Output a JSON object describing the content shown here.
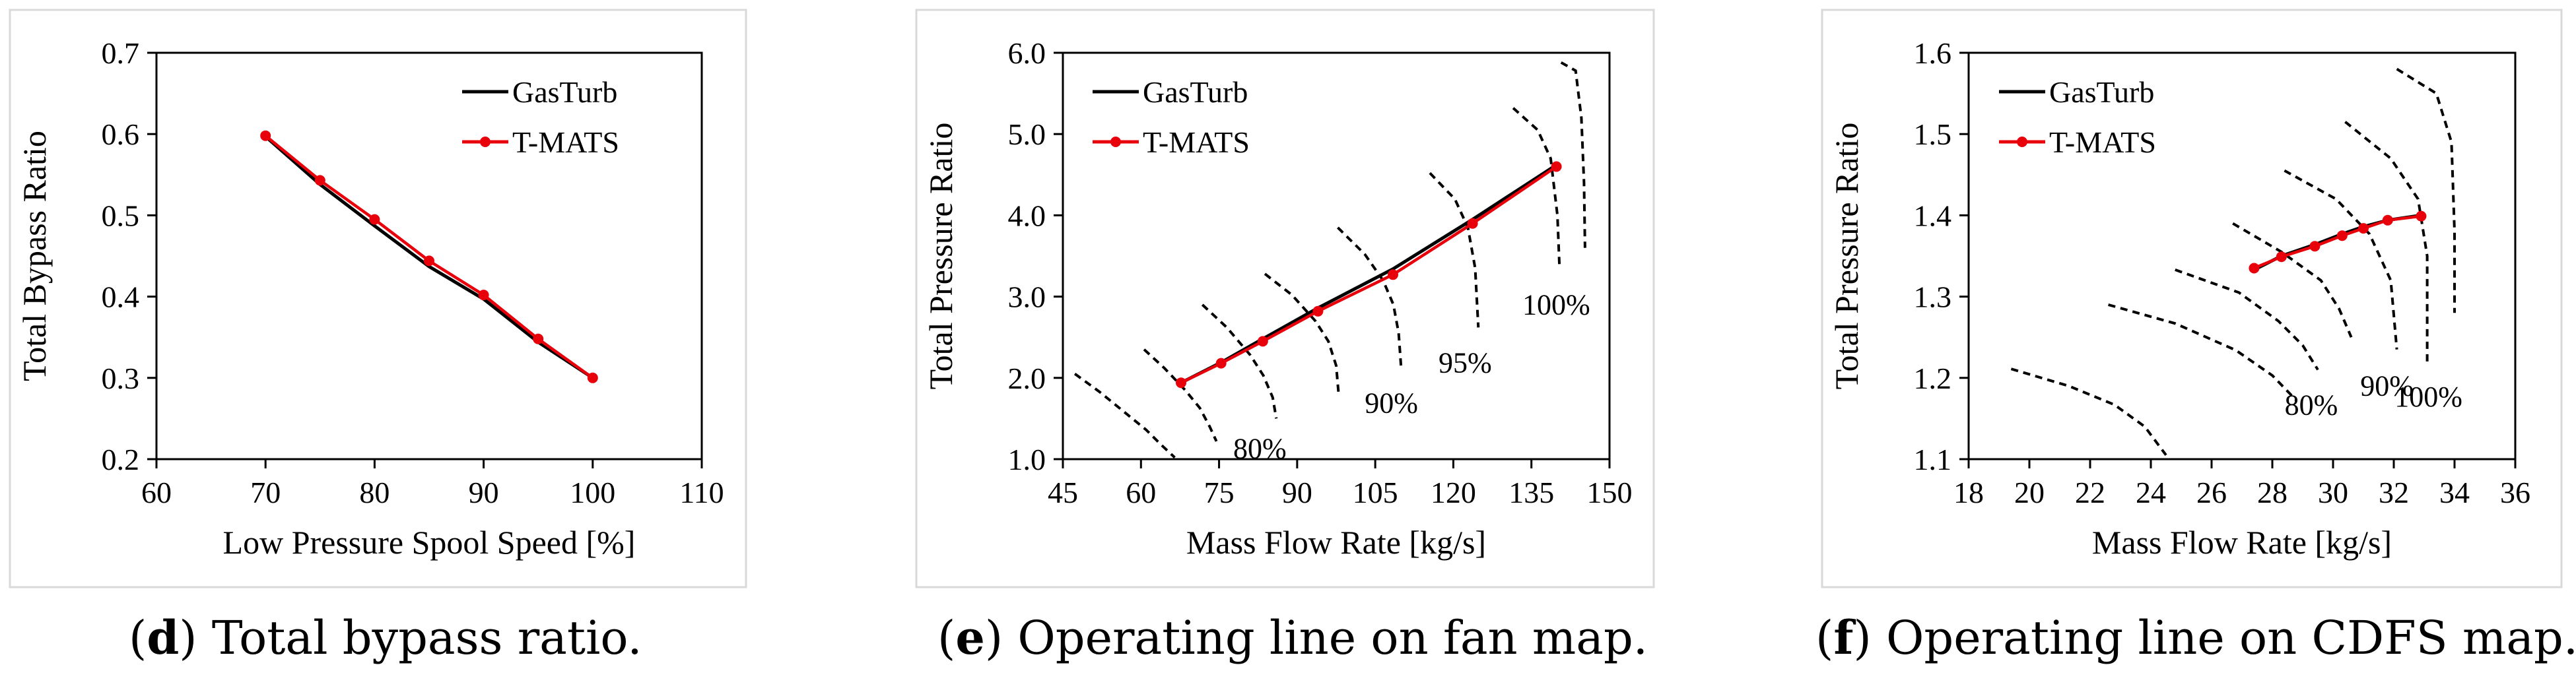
{
  "captions": [
    {
      "letter": "d",
      "text": "Total bypass ratio."
    },
    {
      "letter": "e",
      "text": "Operating line on fan map."
    },
    {
      "letter": "f",
      "text": "Operating line on CDFS map."
    }
  ],
  "colors": {
    "gasturb": "#000000",
    "tmats": "#e8000b",
    "speed_lines": "#000000",
    "frame": "#d9d9d9"
  },
  "chart_data": [
    {
      "type": "line",
      "xlabel": "Low Pressure Spool Speed [%]",
      "ylabel": "Total Bypass Ratio",
      "xlim": [
        60,
        110
      ],
      "ylim": [
        0.2,
        0.7
      ],
      "x_ticks": [
        "60",
        "70",
        "80",
        "90",
        "100",
        "110"
      ],
      "y_ticks": [
        "0.2",
        "0.3",
        "0.4",
        "0.5",
        "0.6",
        "0.7"
      ],
      "legend": "top-right",
      "grid": false,
      "series": [
        {
          "name": "GasTurb",
          "style": "line",
          "x": [
            70,
            75,
            80,
            85,
            90,
            95,
            100
          ],
          "y": [
            0.597,
            0.538,
            0.487,
            0.437,
            0.397,
            0.344,
            0.3
          ]
        },
        {
          "name": "T-MATS",
          "style": "line-markers",
          "x": [
            70,
            75,
            80,
            85,
            90,
            95,
            100
          ],
          "y": [
            0.598,
            0.543,
            0.495,
            0.444,
            0.402,
            0.348,
            0.3
          ]
        }
      ]
    },
    {
      "type": "line",
      "xlabel": "Mass Flow Rate [kg/s]",
      "ylabel": "Total Pressure Ratio",
      "xlim": [
        45,
        150
      ],
      "ylim": [
        1.0,
        6.0
      ],
      "x_ticks": [
        "45",
        "60",
        "75",
        "90",
        "105",
        "120",
        "135",
        "150"
      ],
      "y_ticks": [
        "1.0",
        "2.0",
        "3.0",
        "4.0",
        "5.0",
        "6.0"
      ],
      "legend": "top-left",
      "grid": false,
      "speed_lines": [
        {
          "label": "",
          "x": [
            47.3,
            52,
            57,
            61,
            64,
            66.5
          ],
          "y": [
            2.05,
            1.83,
            1.57,
            1.36,
            1.17,
            1.02
          ]
        },
        {
          "label": "",
          "x": [
            60.6,
            64.5,
            68.5,
            71.3,
            73.2,
            74.5
          ],
          "y": [
            2.35,
            2.12,
            1.85,
            1.63,
            1.4,
            1.22
          ]
        },
        {
          "label": "80%",
          "x": [
            71.8,
            76.5,
            81,
            83.5,
            85.3,
            86
          ],
          "y": [
            2.9,
            2.62,
            2.28,
            2.03,
            1.76,
            1.5
          ]
        },
        {
          "label": "",
          "x": [
            83.8,
            89,
            93.5,
            96,
            97.5,
            98
          ],
          "y": [
            3.28,
            3.02,
            2.7,
            2.45,
            2.15,
            1.78
          ]
        },
        {
          "label": "90%",
          "x": [
            97.8,
            103,
            106.5,
            108.5,
            109.5,
            110
          ],
          "y": [
            3.85,
            3.52,
            3.2,
            2.9,
            2.55,
            2.1
          ]
        },
        {
          "label": "95%",
          "x": [
            115.5,
            120.3,
            122.8,
            124.2,
            124.8
          ],
          "y": [
            4.52,
            4.2,
            3.85,
            3.35,
            2.62
          ]
        },
        {
          "label": "100%",
          "x": [
            131.5,
            136.2,
            138.7,
            140,
            140.4
          ],
          "y": [
            5.32,
            5.05,
            4.7,
            4.0,
            3.35
          ]
        },
        {
          "label": "",
          "x": [
            140.7,
            143.5,
            144.6,
            145.1,
            145.3
          ],
          "y": [
            5.88,
            5.78,
            5.2,
            4.4,
            3.6
          ]
        }
      ],
      "series": [
        {
          "name": "GasTurb",
          "style": "line",
          "x": [
            67.7,
            75.4,
            83.4,
            94.0,
            108.4,
            123.7,
            139.8
          ],
          "y": [
            1.94,
            2.19,
            2.48,
            2.86,
            3.34,
            3.95,
            4.62
          ]
        },
        {
          "name": "T-MATS",
          "style": "line-markers",
          "x": [
            67.7,
            75.4,
            83.4,
            94.0,
            108.4,
            123.7,
            139.8
          ],
          "y": [
            1.94,
            2.18,
            2.45,
            2.82,
            3.27,
            3.9,
            4.6
          ]
        }
      ]
    },
    {
      "type": "line",
      "xlabel": "Mass Flow Rate [kg/s]",
      "ylabel": "Total Pressure Ratio",
      "xlim": [
        18,
        36
      ],
      "ylim": [
        1.1,
        1.6
      ],
      "x_ticks": [
        "18",
        "20",
        "22",
        "24",
        "26",
        "28",
        "30",
        "32",
        "34",
        "36"
      ],
      "y_ticks": [
        "1.1",
        "1.2",
        "1.3",
        "1.4",
        "1.5",
        "1.6"
      ],
      "legend": "top-left",
      "grid": false,
      "speed_lines": [
        {
          "label": "",
          "x": [
            19.4,
            21.3,
            22.8,
            23.8,
            24.5
          ],
          "y": [
            1.211,
            1.19,
            1.167,
            1.14,
            1.105
          ]
        },
        {
          "label": "",
          "x": [
            22.6,
            24.8,
            26.8,
            28.0,
            28.8
          ],
          "y": [
            1.29,
            1.267,
            1.234,
            1.203,
            1.172
          ]
        },
        {
          "label": "80%",
          "x": [
            24.8,
            26.9,
            28.2,
            29.0,
            29.5
          ],
          "y": [
            1.333,
            1.305,
            1.27,
            1.24,
            1.21
          ]
        },
        {
          "label": "",
          "x": [
            26.7,
            28.3,
            29.6,
            30.2,
            30.6
          ],
          "y": [
            1.39,
            1.355,
            1.32,
            1.285,
            1.25
          ]
        },
        {
          "label": "90%",
          "x": [
            28.4,
            30.1,
            31.2,
            31.9,
            32.1
          ],
          "y": [
            1.455,
            1.42,
            1.377,
            1.32,
            1.235
          ]
        },
        {
          "label": "100%",
          "x": [
            30.4,
            31.9,
            32.8,
            33.1,
            33.1
          ],
          "y": [
            1.515,
            1.47,
            1.42,
            1.35,
            1.22
          ]
        },
        {
          "label": "",
          "x": [
            32.1,
            33.4,
            33.9,
            34.0,
            34.0
          ],
          "y": [
            1.58,
            1.55,
            1.49,
            1.38,
            1.28
          ]
        }
      ],
      "series": [
        {
          "name": "GasTurb",
          "style": "line",
          "x": [
            27.4,
            28.3,
            29.4,
            30.3,
            31.0,
            31.8,
            32.9
          ],
          "y": [
            1.333,
            1.35,
            1.364,
            1.377,
            1.386,
            1.394,
            1.4
          ]
        },
        {
          "name": "T-MATS",
          "style": "line-markers",
          "x": [
            27.4,
            28.3,
            29.4,
            30.3,
            31.0,
            31.8,
            32.9
          ],
          "y": [
            1.335,
            1.349,
            1.362,
            1.375,
            1.384,
            1.394,
            1.399
          ]
        }
      ]
    }
  ]
}
